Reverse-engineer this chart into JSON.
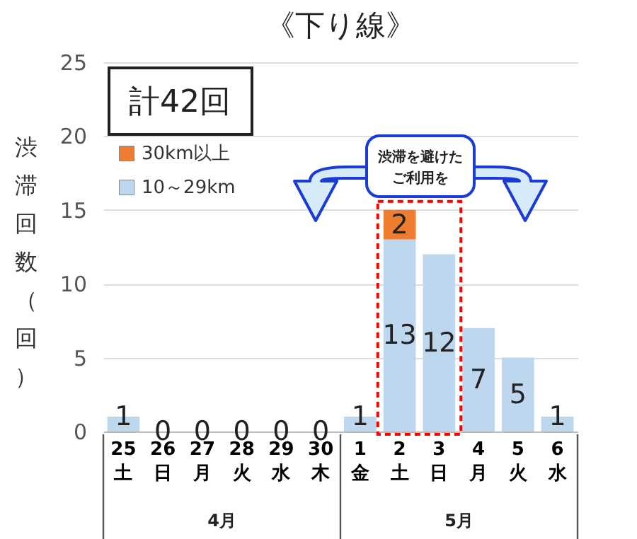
{
  "chart_data": {
    "type": "bar",
    "title": "《下り線》",
    "ylabel": "渋滞回数（回）",
    "categories": [
      "25\n土",
      "26\n日",
      "27\n月",
      "28\n火",
      "29\n水",
      "30\n木",
      "1\n金",
      "2\n土",
      "3\n日",
      "4\n月",
      "5\n火",
      "6\n水"
    ],
    "series": [
      {
        "name": "10～29km",
        "color": "#bdd7ee",
        "values": [
          1,
          0,
          0,
          0,
          0,
          0,
          1,
          13,
          12,
          7,
          5,
          1
        ],
        "value_labels": [
          "1",
          "0",
          "0",
          "0",
          "0",
          "0",
          "1",
          "13",
          "12",
          "7",
          "5",
          "1"
        ]
      },
      {
        "name": "30km以上",
        "color": "#ed7d31",
        "values": [
          0,
          0,
          0,
          0,
          0,
          0,
          0,
          2,
          0,
          0,
          0,
          0
        ],
        "value_labels": [
          null,
          null,
          null,
          null,
          null,
          null,
          null,
          "2",
          null,
          null,
          null,
          null
        ]
      }
    ],
    "stacked": true,
    "ylim": [
      0,
      25
    ],
    "yticks": [
      0,
      5,
      10,
      15,
      20,
      25
    ],
    "grid": "y",
    "legend": "top left",
    "annotations": [
      "計42回",
      "渋滞を避けたご利用を",
      "4月",
      "5月"
    ]
  }
}
